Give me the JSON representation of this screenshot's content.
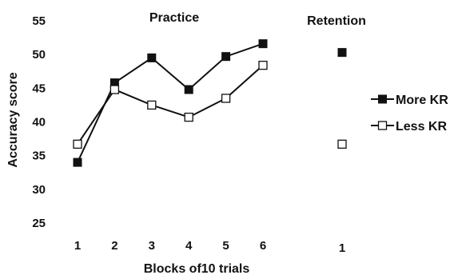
{
  "chart_data": {
    "type": "line",
    "practice_title": "Practice",
    "retention_title": "Retention",
    "ylabel": "Accuracy score",
    "xlabel": "Blocks of10 trials",
    "ylim": [
      25,
      55
    ],
    "yticks": [
      "55",
      "50",
      "45",
      "40",
      "35",
      "30",
      "25"
    ],
    "practice_categories": [
      "1",
      "2",
      "3",
      "4",
      "5",
      "6"
    ],
    "retention_categories": [
      "1"
    ],
    "grid": false,
    "legend_position": "right",
    "series": [
      {
        "name": "More KR",
        "marker": "filled-square",
        "color": "#111111",
        "practice": [
          34.0,
          45.8,
          49.5,
          44.8,
          49.7,
          51.6
        ],
        "retention": [
          50.3
        ]
      },
      {
        "name": "Less KR",
        "marker": "open-square",
        "color": "#111111",
        "practice": [
          36.7,
          44.8,
          42.5,
          40.7,
          43.5,
          48.4
        ],
        "retention": [
          36.7
        ]
      }
    ]
  }
}
